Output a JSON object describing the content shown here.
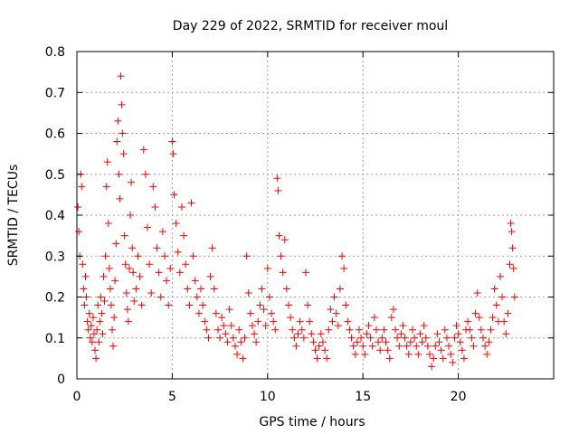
{
  "chart_data": {
    "type": "scatter",
    "title": "Day 229 of 2022, SRMTID for receiver moul",
    "xlabel": "GPS time / hours",
    "ylabel": "SRMTID / TECUs",
    "xlim": [
      0,
      25
    ],
    "ylim": [
      0,
      0.8
    ],
    "xticks": [
      0,
      5,
      10,
      15,
      20
    ],
    "yticks": [
      0,
      0.1,
      0.2,
      0.3,
      0.4,
      0.5,
      0.6,
      0.7,
      0.8
    ],
    "xtick_labels": [
      "0",
      "5",
      "10",
      "15",
      "20"
    ],
    "ytick_labels": [
      "0",
      "0.1",
      "0.2",
      "0.3",
      "0.4",
      "0.5",
      "0.6",
      "0.7",
      "0.8"
    ],
    "grid": true,
    "marker": "plus",
    "color": "#ff0000",
    "series": [
      {
        "name": "moul",
        "points": [
          [
            0.05,
            0.42
          ],
          [
            0.1,
            0.36
          ],
          [
            0.15,
            0.3
          ],
          [
            0.2,
            0.5
          ],
          [
            0.25,
            0.47
          ],
          [
            0.3,
            0.28
          ],
          [
            0.35,
            0.22
          ],
          [
            0.4,
            0.18
          ],
          [
            0.45,
            0.25
          ],
          [
            0.5,
            0.2
          ],
          [
            0.55,
            0.14
          ],
          [
            0.6,
            0.12
          ],
          [
            0.65,
            0.16
          ],
          [
            0.7,
            0.1
          ],
          [
            0.75,
            0.13
          ],
          [
            0.8,
            0.09
          ],
          [
            0.85,
            0.15
          ],
          [
            0.9,
            0.11
          ],
          [
            0.95,
            0.07
          ],
          [
            1.0,
            0.05
          ],
          [
            1.05,
            0.12
          ],
          [
            1.1,
            0.18
          ],
          [
            1.15,
            0.09
          ],
          [
            1.2,
            0.14
          ],
          [
            1.25,
            0.2
          ],
          [
            1.3,
            0.16
          ],
          [
            1.35,
            0.11
          ],
          [
            1.4,
            0.25
          ],
          [
            1.45,
            0.19
          ],
          [
            1.5,
            0.3
          ],
          [
            1.55,
            0.47
          ],
          [
            1.6,
            0.53
          ],
          [
            1.65,
            0.38
          ],
          [
            1.7,
            0.27
          ],
          [
            1.75,
            0.22
          ],
          [
            1.8,
            0.18
          ],
          [
            1.85,
            0.12
          ],
          [
            1.9,
            0.08
          ],
          [
            1.95,
            0.15
          ],
          [
            2.0,
            0.24
          ],
          [
            2.05,
            0.33
          ],
          [
            2.1,
            0.58
          ],
          [
            2.15,
            0.63
          ],
          [
            2.2,
            0.5
          ],
          [
            2.25,
            0.44
          ],
          [
            2.3,
            0.74
          ],
          [
            2.35,
            0.67
          ],
          [
            2.4,
            0.6
          ],
          [
            2.45,
            0.55
          ],
          [
            2.5,
            0.35
          ],
          [
            2.55,
            0.28
          ],
          [
            2.6,
            0.21
          ],
          [
            2.65,
            0.17
          ],
          [
            2.7,
            0.14
          ],
          [
            2.75,
            0.27
          ],
          [
            2.8,
            0.4
          ],
          [
            2.85,
            0.48
          ],
          [
            2.9,
            0.32
          ],
          [
            2.95,
            0.26
          ],
          [
            3.0,
            0.19
          ],
          [
            3.1,
            0.22
          ],
          [
            3.2,
            0.3
          ],
          [
            3.3,
            0.25
          ],
          [
            3.4,
            0.18
          ],
          [
            3.5,
            0.56
          ],
          [
            3.6,
            0.5
          ],
          [
            3.7,
            0.37
          ],
          [
            3.8,
            0.28
          ],
          [
            3.9,
            0.21
          ],
          [
            4.0,
            0.47
          ],
          [
            4.1,
            0.42
          ],
          [
            4.2,
            0.32
          ],
          [
            4.3,
            0.26
          ],
          [
            4.4,
            0.2
          ],
          [
            4.5,
            0.36
          ],
          [
            4.6,
            0.3
          ],
          [
            4.7,
            0.24
          ],
          [
            4.8,
            0.18
          ],
          [
            4.9,
            0.27
          ],
          [
            5.0,
            0.58
          ],
          [
            5.05,
            0.55
          ],
          [
            5.1,
            0.45
          ],
          [
            5.2,
            0.38
          ],
          [
            5.3,
            0.31
          ],
          [
            5.4,
            0.26
          ],
          [
            5.5,
            0.42
          ],
          [
            5.6,
            0.35
          ],
          [
            5.7,
            0.28
          ],
          [
            5.8,
            0.22
          ],
          [
            5.9,
            0.18
          ],
          [
            6.0,
            0.43
          ],
          [
            6.1,
            0.3
          ],
          [
            6.2,
            0.24
          ],
          [
            6.3,
            0.2
          ],
          [
            6.4,
            0.16
          ],
          [
            6.5,
            0.22
          ],
          [
            6.6,
            0.18
          ],
          [
            6.7,
            0.14
          ],
          [
            6.8,
            0.12
          ],
          [
            6.9,
            0.1
          ],
          [
            7.0,
            0.25
          ],
          [
            7.1,
            0.32
          ],
          [
            7.2,
            0.22
          ],
          [
            7.3,
            0.16
          ],
          [
            7.4,
            0.12
          ],
          [
            7.5,
            0.1
          ],
          [
            7.6,
            0.15
          ],
          [
            7.7,
            0.13
          ],
          [
            7.8,
            0.11
          ],
          [
            7.9,
            0.09
          ],
          [
            8.0,
            0.17
          ],
          [
            8.1,
            0.13
          ],
          [
            8.2,
            0.1
          ],
          [
            8.3,
            0.08
          ],
          [
            8.4,
            0.06
          ],
          [
            8.5,
            0.12
          ],
          [
            8.6,
            0.09
          ],
          [
            8.7,
            0.05
          ],
          [
            8.8,
            0.1
          ],
          [
            8.9,
            0.3
          ],
          [
            9.0,
            0.21
          ],
          [
            9.1,
            0.16
          ],
          [
            9.2,
            0.13
          ],
          [
            9.3,
            0.11
          ],
          [
            9.4,
            0.09
          ],
          [
            9.5,
            0.14
          ],
          [
            9.6,
            0.18
          ],
          [
            9.7,
            0.22
          ],
          [
            9.8,
            0.17
          ],
          [
            9.9,
            0.13
          ],
          [
            10.0,
            0.27
          ],
          [
            10.1,
            0.2
          ],
          [
            10.2,
            0.16
          ],
          [
            10.3,
            0.14
          ],
          [
            10.4,
            0.12
          ],
          [
            10.5,
            0.49
          ],
          [
            10.55,
            0.46
          ],
          [
            10.6,
            0.35
          ],
          [
            10.7,
            0.3
          ],
          [
            10.8,
            0.26
          ],
          [
            10.9,
            0.34
          ],
          [
            11.0,
            0.22
          ],
          [
            11.1,
            0.18
          ],
          [
            11.2,
            0.15
          ],
          [
            11.3,
            0.12
          ],
          [
            11.4,
            0.1
          ],
          [
            11.5,
            0.08
          ],
          [
            11.6,
            0.11
          ],
          [
            11.7,
            0.14
          ],
          [
            11.8,
            0.12
          ],
          [
            11.9,
            0.1
          ],
          [
            12.0,
            0.26
          ],
          [
            12.1,
            0.18
          ],
          [
            12.2,
            0.14
          ],
          [
            12.3,
            0.11
          ],
          [
            12.4,
            0.09
          ],
          [
            12.5,
            0.07
          ],
          [
            12.6,
            0.05
          ],
          [
            12.7,
            0.08
          ],
          [
            12.8,
            0.11
          ],
          [
            12.9,
            0.09
          ],
          [
            13.0,
            0.07
          ],
          [
            13.1,
            0.05
          ],
          [
            13.2,
            0.12
          ],
          [
            13.3,
            0.17
          ],
          [
            13.4,
            0.14
          ],
          [
            13.5,
            0.2
          ],
          [
            13.6,
            0.16
          ],
          [
            13.7,
            0.13
          ],
          [
            13.8,
            0.22
          ],
          [
            13.9,
            0.3
          ],
          [
            14.0,
            0.27
          ],
          [
            14.1,
            0.18
          ],
          [
            14.2,
            0.14
          ],
          [
            14.3,
            0.12
          ],
          [
            14.4,
            0.1
          ],
          [
            14.5,
            0.08
          ],
          [
            14.6,
            0.06
          ],
          [
            14.7,
            0.09
          ],
          [
            14.8,
            0.12
          ],
          [
            14.9,
            0.1
          ],
          [
            15.0,
            0.08
          ],
          [
            15.1,
            0.06
          ],
          [
            15.2,
            0.11
          ],
          [
            15.3,
            0.13
          ],
          [
            15.4,
            0.1
          ],
          [
            15.5,
            0.08
          ],
          [
            15.6,
            0.15
          ],
          [
            15.7,
            0.12
          ],
          [
            15.8,
            0.09
          ],
          [
            15.9,
            0.07
          ],
          [
            16.0,
            0.1
          ],
          [
            16.1,
            0.12
          ],
          [
            16.2,
            0.09
          ],
          [
            16.3,
            0.07
          ],
          [
            16.4,
            0.05
          ],
          [
            16.5,
            0.15
          ],
          [
            16.6,
            0.17
          ],
          [
            16.7,
            0.12
          ],
          [
            16.8,
            0.1
          ],
          [
            16.9,
            0.08
          ],
          [
            17.0,
            0.11
          ],
          [
            17.1,
            0.13
          ],
          [
            17.2,
            0.1
          ],
          [
            17.3,
            0.08
          ],
          [
            17.4,
            0.06
          ],
          [
            17.5,
            0.09
          ],
          [
            17.6,
            0.12
          ],
          [
            17.7,
            0.1
          ],
          [
            17.8,
            0.08
          ],
          [
            17.9,
            0.06
          ],
          [
            18.0,
            0.11
          ],
          [
            18.1,
            0.09
          ],
          [
            18.2,
            0.13
          ],
          [
            18.3,
            0.1
          ],
          [
            18.4,
            0.08
          ],
          [
            18.5,
            0.06
          ],
          [
            18.6,
            0.03
          ],
          [
            18.7,
            0.05
          ],
          [
            18.8,
            0.08
          ],
          [
            18.9,
            0.11
          ],
          [
            19.0,
            0.09
          ],
          [
            19.1,
            0.07
          ],
          [
            19.2,
            0.05
          ],
          [
            19.3,
            0.12
          ],
          [
            19.4,
            0.1
          ],
          [
            19.5,
            0.08
          ],
          [
            19.6,
            0.06
          ],
          [
            19.7,
            0.04
          ],
          [
            19.8,
            0.1
          ],
          [
            19.9,
            0.13
          ],
          [
            20.0,
            0.11
          ],
          [
            20.1,
            0.09
          ],
          [
            20.2,
            0.07
          ],
          [
            20.3,
            0.05
          ],
          [
            20.4,
            0.12
          ],
          [
            20.5,
            0.14
          ],
          [
            20.6,
            0.12
          ],
          [
            20.7,
            0.1
          ],
          [
            20.8,
            0.08
          ],
          [
            20.9,
            0.16
          ],
          [
            21.0,
            0.21
          ],
          [
            21.1,
            0.15
          ],
          [
            21.2,
            0.12
          ],
          [
            21.3,
            0.1
          ],
          [
            21.4,
            0.08
          ],
          [
            21.5,
            0.06
          ],
          [
            21.6,
            0.09
          ],
          [
            21.7,
            0.12
          ],
          [
            21.8,
            0.15
          ],
          [
            21.9,
            0.22
          ],
          [
            22.0,
            0.18
          ],
          [
            22.1,
            0.14
          ],
          [
            22.2,
            0.25
          ],
          [
            22.3,
            0.2
          ],
          [
            22.4,
            0.14
          ],
          [
            22.5,
            0.11
          ],
          [
            22.6,
            0.16
          ],
          [
            22.7,
            0.28
          ],
          [
            22.75,
            0.38
          ],
          [
            22.8,
            0.36
          ],
          [
            22.85,
            0.32
          ],
          [
            22.9,
            0.27
          ],
          [
            22.95,
            0.2
          ]
        ]
      }
    ]
  }
}
